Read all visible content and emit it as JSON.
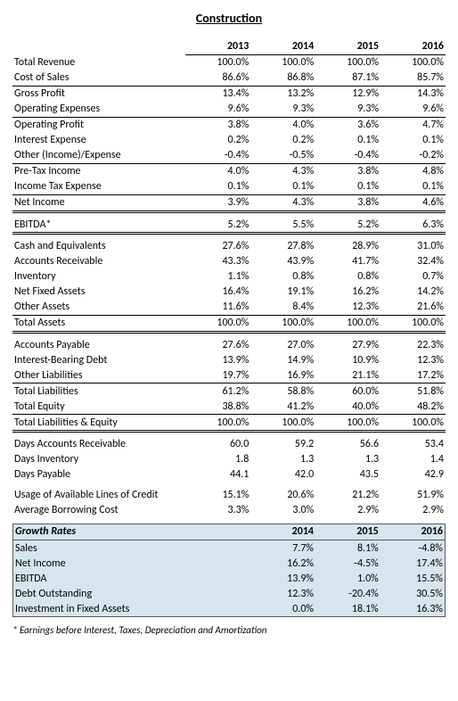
{
  "title": "Construction",
  "years": [
    "2013",
    "2014",
    "2015",
    "2016"
  ],
  "section1": [
    {
      "label": "Total Revenue",
      "vals": [
        "100.0%",
        "100.0%",
        "100.0%",
        "100.0%"
      ]
    },
    {
      "label": "Cost of Sales",
      "vals": [
        "86.6%",
        "86.8%",
        "87.1%",
        "85.7%"
      ]
    },
    {
      "label": "Gross Profit",
      "vals": [
        "13.4%",
        "13.2%",
        "12.9%",
        "14.3%"
      ],
      "top": true
    },
    {
      "label": "Operating Expenses",
      "vals": [
        "9.6%",
        "9.3%",
        "9.3%",
        "9.6%"
      ]
    },
    {
      "label": "Operating Profit",
      "vals": [
        "3.8%",
        "4.0%",
        "3.6%",
        "4.7%"
      ],
      "top": true
    },
    {
      "label": "Interest Expense",
      "vals": [
        "0.2%",
        "0.2%",
        "0.1%",
        "0.1%"
      ]
    },
    {
      "label": "Other (Income)/Expense",
      "vals": [
        "-0.4%",
        "-0.5%",
        "-0.4%",
        "-0.2%"
      ]
    },
    {
      "label": "Pre-Tax Income",
      "vals": [
        "4.0%",
        "4.3%",
        "3.8%",
        "4.8%"
      ],
      "top": true
    },
    {
      "label": "Income Tax Expense",
      "vals": [
        "0.1%",
        "0.1%",
        "0.1%",
        "0.1%"
      ]
    },
    {
      "label": "Net Income",
      "vals": [
        "3.9%",
        "4.3%",
        "3.8%",
        "4.6%"
      ],
      "top": true,
      "dbl": true
    }
  ],
  "ebitda": {
    "label": "EBITDA*",
    "vals": [
      "5.2%",
      "5.5%",
      "5.2%",
      "6.3%"
    ],
    "dbl": true
  },
  "section2": [
    {
      "label": "Cash and Equivalents",
      "vals": [
        "27.6%",
        "27.8%",
        "28.9%",
        "31.0%"
      ]
    },
    {
      "label": "Accounts Receivable",
      "vals": [
        "43.3%",
        "43.9%",
        "41.7%",
        "32.4%"
      ]
    },
    {
      "label": "Inventory",
      "vals": [
        "1.1%",
        "0.8%",
        "0.8%",
        "0.7%"
      ]
    },
    {
      "label": "Net Fixed Assets",
      "vals": [
        "16.4%",
        "19.1%",
        "16.2%",
        "14.2%"
      ]
    },
    {
      "label": "Other Assets",
      "vals": [
        "11.6%",
        "8.4%",
        "12.3%",
        "21.6%"
      ]
    },
    {
      "label": "Total Assets",
      "vals": [
        "100.0%",
        "100.0%",
        "100.0%",
        "100.0%"
      ],
      "top": true,
      "dbl": true
    }
  ],
  "section3": [
    {
      "label": "Accounts Payable",
      "vals": [
        "27.6%",
        "27.0%",
        "27.9%",
        "22.3%"
      ]
    },
    {
      "label": "Interest-Bearing Debt",
      "vals": [
        "13.9%",
        "14.9%",
        "10.9%",
        "12.3%"
      ]
    },
    {
      "label": "Other Liabilities",
      "vals": [
        "19.7%",
        "16.9%",
        "21.1%",
        "17.2%"
      ]
    },
    {
      "label": "Total Liabilities",
      "vals": [
        "61.2%",
        "58.8%",
        "60.0%",
        "51.8%"
      ],
      "top": true
    },
    {
      "label": "Total Equity",
      "vals": [
        "38.8%",
        "41.2%",
        "40.0%",
        "48.2%"
      ]
    },
    {
      "label": "Total Liabilities & Equity",
      "vals": [
        "100.0%",
        "100.0%",
        "100.0%",
        "100.0%"
      ],
      "top": true,
      "dbl": true
    }
  ],
  "section4": [
    {
      "label": "Days Accounts Receivable",
      "vals": [
        "60.0",
        "59.2",
        "56.6",
        "53.4"
      ]
    },
    {
      "label": "Days Inventory",
      "vals": [
        "1.8",
        "1.3",
        "1.3",
        "1.4"
      ]
    },
    {
      "label": "Days Payable",
      "vals": [
        "44.1",
        "42.0",
        "43.5",
        "42.9"
      ]
    }
  ],
  "section5": [
    {
      "label": "Usage of Available Lines of Credit",
      "vals": [
        "15.1%",
        "20.6%",
        "21.2%",
        "51.9%"
      ]
    },
    {
      "label": "Average Borrowing Cost",
      "vals": [
        "3.3%",
        "3.0%",
        "2.9%",
        "2.9%"
      ]
    }
  ],
  "growth": {
    "title": "Growth Rates",
    "years": [
      "2014",
      "2015",
      "2016"
    ],
    "rows": [
      {
        "label": "Sales",
        "vals": [
          "7.7%",
          "8.1%",
          "-4.8%"
        ]
      },
      {
        "label": "Net Income",
        "vals": [
          "16.2%",
          "-4.5%",
          "17.4%"
        ]
      },
      {
        "label": "EBITDA",
        "vals": [
          "13.9%",
          "1.0%",
          "15.5%"
        ]
      },
      {
        "label": "Debt Outstanding",
        "vals": [
          "12.3%",
          "-20.4%",
          "30.5%"
        ]
      },
      {
        "label": "Investment in Fixed Assets",
        "vals": [
          "0.0%",
          "18.1%",
          "16.3%"
        ]
      }
    ]
  },
  "footnote": "* Earnings before Interest, Taxes, Depreciation and Amortization"
}
